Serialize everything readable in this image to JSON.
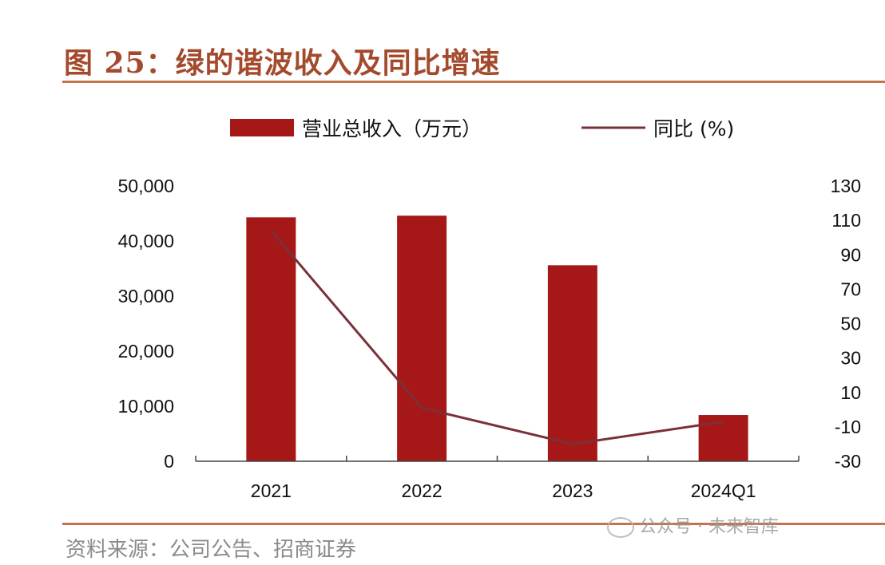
{
  "figure": {
    "title": "图 25：绿的谐波收入及同比增速",
    "source": "资料来源：公司公告、招商证券",
    "watermark": "公众号 · 未来智库"
  },
  "colors": {
    "bar": "#a61818",
    "line": "#7a3038",
    "rule": "#c5734a",
    "title": "#a44a2c"
  },
  "chart_data": {
    "type": "bar",
    "categories": [
      "2021",
      "2022",
      "2023",
      "2024Q1"
    ],
    "series": [
      {
        "name": "营业总收入（万元）",
        "type": "bar",
        "axis": "left",
        "values": [
          44300,
          44600,
          35600,
          8400
        ]
      },
      {
        "name": "同比 (%)",
        "type": "line",
        "axis": "right",
        "values": [
          104,
          1,
          -20,
          -7
        ]
      }
    ],
    "left_axis": {
      "min": 0,
      "max": 50000,
      "ticks": [
        "0",
        "10,000",
        "20,000",
        "30,000",
        "40,000",
        "50,000"
      ],
      "tick_values": [
        0,
        10000,
        20000,
        30000,
        40000,
        50000
      ]
    },
    "right_axis": {
      "min": -30,
      "max": 130,
      "ticks": [
        "-30",
        "-10",
        "10",
        "30",
        "50",
        "70",
        "90",
        "110",
        "130"
      ],
      "tick_values": [
        -30,
        -10,
        10,
        30,
        50,
        70,
        90,
        110,
        130
      ]
    },
    "legend_position": "top-center",
    "grid": false
  }
}
